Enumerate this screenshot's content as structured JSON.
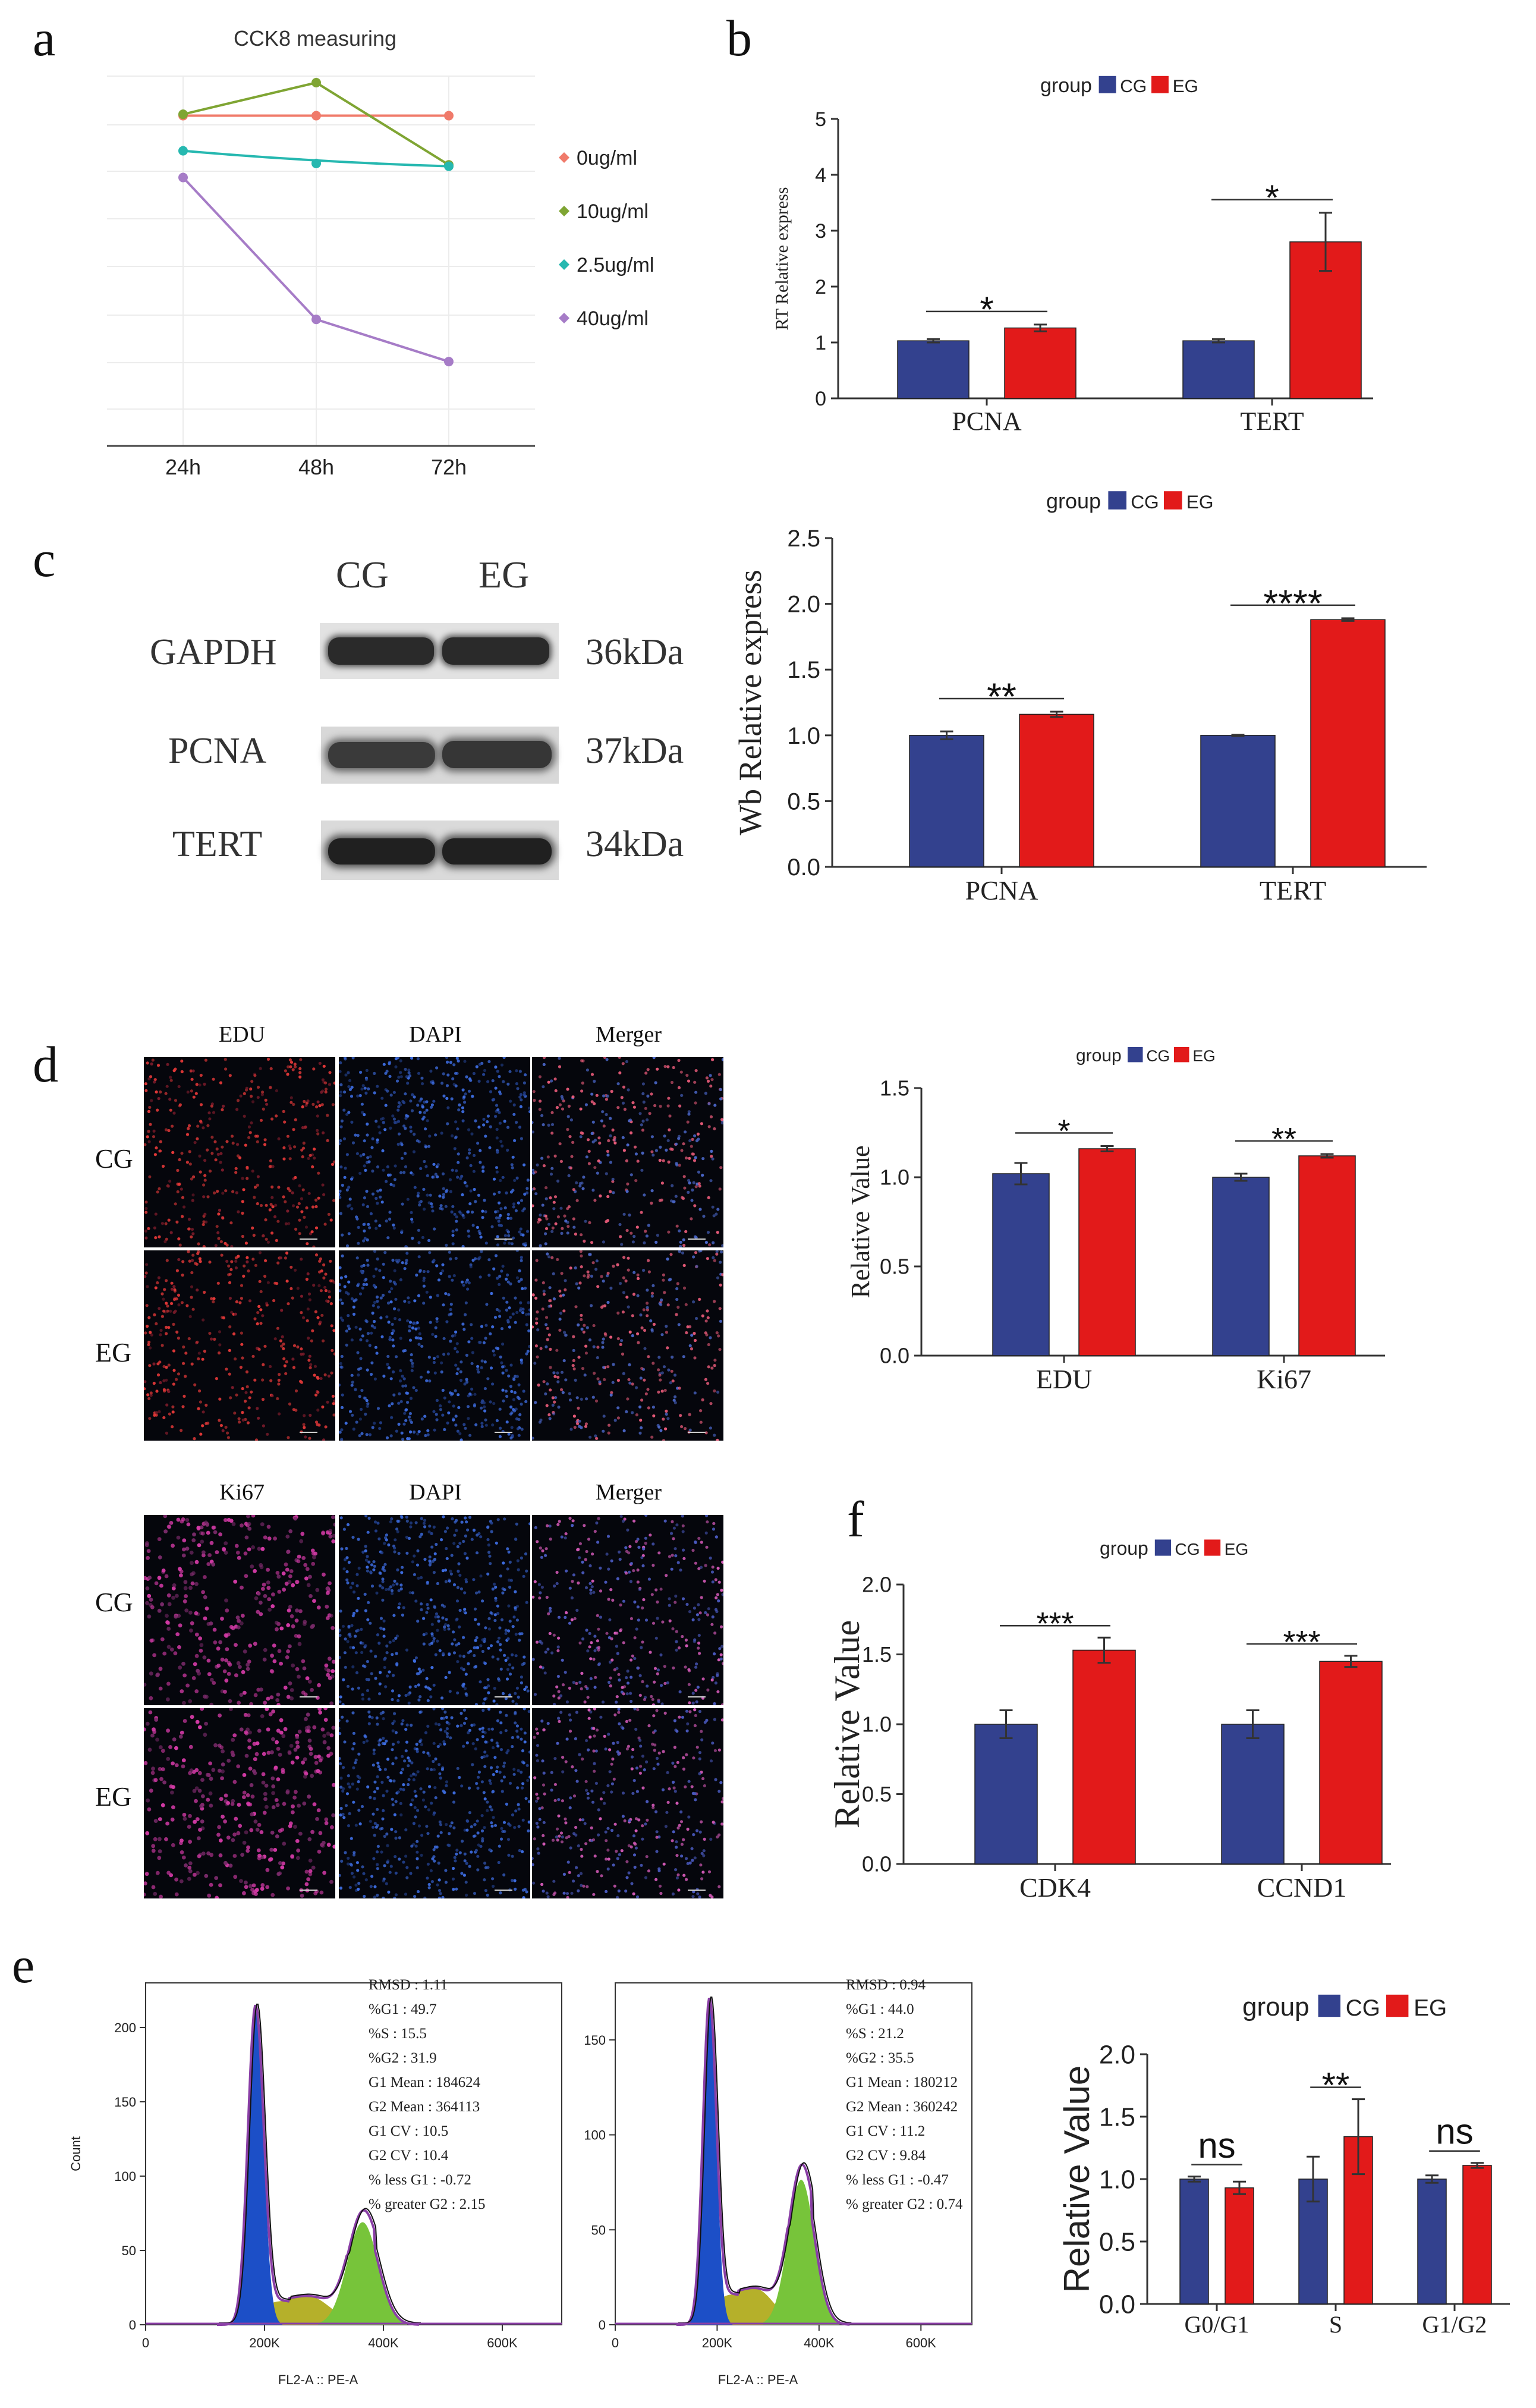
{
  "panels": {
    "a": "a",
    "b": "b",
    "c": "c",
    "d": "d",
    "e": "e",
    "f": "f"
  },
  "chart_data": [
    {
      "id": "a",
      "type": "line",
      "title": "CCK8 measuring",
      "x": [
        "24h",
        "48h",
        "72h"
      ],
      "series": [
        {
          "name": "0ug/ml",
          "values": [
            0.84,
            0.84,
            0.84
          ],
          "color": "#f07a6a"
        },
        {
          "name": "10ug/ml",
          "values": [
            0.842,
            0.887,
            0.77
          ],
          "color": "#7fa533"
        },
        {
          "name": "2.5ug/ml",
          "values": [
            0.79,
            0.772,
            0.768
          ],
          "color": "#26b8b0"
        },
        {
          "name": "40ug/ml",
          "values": [
            0.752,
            0.55,
            0.49
          ],
          "color": "#a67cc7"
        }
      ],
      "ylim": [
        0.37,
        0.92
      ]
    },
    {
      "id": "b",
      "type": "bar",
      "ylabel": "RT Relative express",
      "legend_title": "group",
      "categories": [
        "PCNA",
        "TERT"
      ],
      "series": [
        {
          "name": "CG",
          "values": [
            1.03,
            1.03
          ],
          "errors": [
            0.03,
            0.03
          ],
          "color": "#33418e"
        },
        {
          "name": "EG",
          "values": [
            1.26,
            2.8
          ],
          "errors": [
            0.06,
            0.52
          ],
          "color": "#e21a1a"
        }
      ],
      "significance": [
        "*",
        "*"
      ],
      "ylim": [
        0,
        5
      ],
      "yticks": [
        "0",
        "1",
        "2",
        "3",
        "4",
        "5"
      ]
    },
    {
      "id": "c",
      "type": "bar",
      "ylabel": "Wb  Relative express",
      "legend_title": "group",
      "categories": [
        "PCNA",
        "TERT"
      ],
      "series": [
        {
          "name": "CG",
          "values": [
            1.0,
            1.0
          ],
          "errors": [
            0.03,
            0.005
          ],
          "color": "#33418e"
        },
        {
          "name": "EG",
          "values": [
            1.16,
            1.88
          ],
          "errors": [
            0.02,
            0.01
          ],
          "color": "#e21a1a"
        }
      ],
      "significance": [
        "**",
        "****"
      ],
      "ylim": [
        0,
        2.5
      ],
      "yticks": [
        "0.0",
        "0.5",
        "1.0",
        "1.5",
        "2.0",
        "2.5"
      ]
    },
    {
      "id": "d",
      "type": "bar",
      "ylabel": "Relative Value",
      "legend_title": "group",
      "categories": [
        "EDU",
        "Ki67"
      ],
      "series": [
        {
          "name": "CG",
          "values": [
            1.02,
            1.0
          ],
          "errors": [
            0.06,
            0.02
          ],
          "color": "#33418e"
        },
        {
          "name": "EG",
          "values": [
            1.16,
            1.12
          ],
          "errors": [
            0.015,
            0.01
          ],
          "color": "#e21a1a"
        }
      ],
      "significance": [
        "*",
        "**"
      ],
      "ylim": [
        0,
        1.5
      ],
      "yticks": [
        "0.0",
        "0.5",
        "1.0",
        "1.5"
      ]
    },
    {
      "id": "f",
      "type": "bar",
      "ylabel": "Relative Value",
      "legend_title": "group",
      "categories": [
        "CDK4",
        "CCND1"
      ],
      "series": [
        {
          "name": "CG",
          "values": [
            1.0,
            1.0
          ],
          "errors": [
            0.1,
            0.1
          ],
          "color": "#33418e"
        },
        {
          "name": "EG",
          "values": [
            1.53,
            1.45
          ],
          "errors": [
            0.09,
            0.04
          ],
          "color": "#e21a1a"
        }
      ],
      "significance": [
        "***",
        "***"
      ],
      "ylim": [
        0,
        2.0
      ],
      "yticks": [
        "0.0",
        "0.5",
        "1.0",
        "1.5",
        "2.0"
      ]
    },
    {
      "id": "e",
      "type": "bar",
      "ylabel": "Relative Value",
      "legend_title": "group",
      "categories": [
        "G0/G1",
        "S",
        "G1/G2"
      ],
      "series": [
        {
          "name": "CG",
          "values": [
            1.0,
            1.0,
            1.0
          ],
          "errors": [
            0.02,
            0.18,
            0.03
          ],
          "color": "#33418e"
        },
        {
          "name": "EG",
          "values": [
            0.93,
            1.34,
            1.11
          ],
          "errors": [
            0.05,
            0.3,
            0.02
          ],
          "color": "#e21a1a"
        }
      ],
      "significance": [
        "ns",
        "**",
        "ns"
      ],
      "ylim": [
        0,
        2.0
      ],
      "yticks": [
        "0.0",
        "0.5",
        "1.0",
        "1.5",
        "2.0"
      ]
    },
    {
      "id": "e_hist_cg",
      "type": "area",
      "xlabel": "FL2-A :: PE-A",
      "ylabel": "Count",
      "xticks": [
        "0",
        "200K",
        "400K",
        "600K"
      ],
      "yticks": [
        "0",
        "50",
        "100",
        "150",
        "200"
      ],
      "ylim": [
        0,
        230
      ],
      "g1_peak": 215,
      "g2_peak": 75,
      "stats": [
        "RMSD : 1.11",
        "%G1 : 49.7",
        "%S : 15.5",
        "%G2 : 31.9",
        "G1 Mean : 184624",
        "G2 Mean : 364113",
        "G1 CV : 10.5",
        "G2 CV : 10.4",
        "% less G1 : -0.72",
        "% greater G2 : 2.15"
      ]
    },
    {
      "id": "e_hist_eg",
      "type": "area",
      "xlabel": "FL2-A :: PE-A",
      "ylabel": "Count",
      "xticks": [
        "0",
        "200K",
        "400K",
        "600K"
      ],
      "yticks": [
        "0",
        "50",
        "100",
        "150"
      ],
      "ylim": [
        0,
        180
      ],
      "g1_peak": 172,
      "g2_peak": 83,
      "stats": [
        "RMSD : 0.94",
        "%G1 : 44.0",
        "%S : 21.2",
        "%G2 : 35.5",
        "G1 Mean : 180212",
        "G2 Mean : 360242",
        "G1 CV : 11.2",
        "G2 CV : 9.84",
        "% less G1 : -0.47",
        "% greater G2 : 0.74"
      ]
    }
  ],
  "western_blot": {
    "columns": [
      "CG",
      "EG"
    ],
    "rows": [
      {
        "protein": "GAPDH",
        "size": "36kDa"
      },
      {
        "protein": "PCNA",
        "size": "37kDa"
      },
      {
        "protein": "TERT",
        "size": "34kDa"
      }
    ]
  },
  "microscopy": {
    "edu_set": {
      "channels": [
        "EDU",
        "DAPI",
        "Merger"
      ],
      "groups": [
        "CG",
        "EG"
      ]
    },
    "ki67_set": {
      "channels": [
        "Ki67",
        "DAPI",
        "Merger"
      ],
      "groups": [
        "CG",
        "EG"
      ]
    }
  }
}
